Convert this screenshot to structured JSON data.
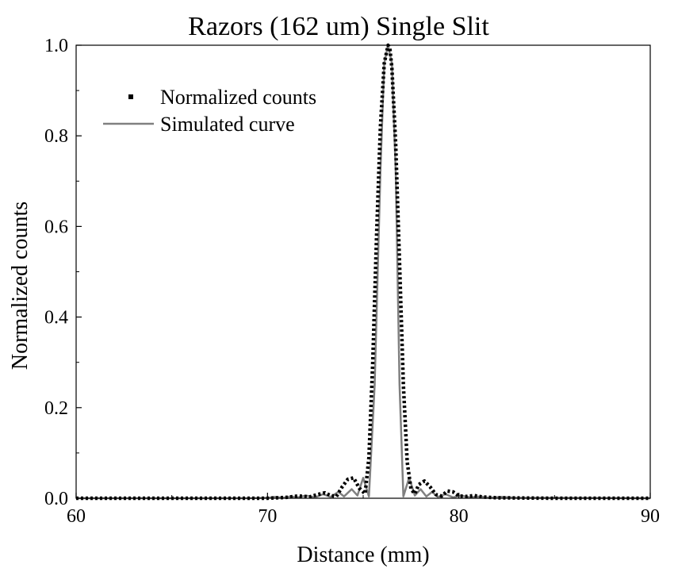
{
  "chart_data": {
    "type": "line",
    "title": "Razors (162 um) Single Slit",
    "xlabel": "Distance (mm)",
    "ylabel": "Normalized counts",
    "xlim": [
      60,
      90
    ],
    "ylim": [
      0,
      1
    ],
    "xticks": [
      "60",
      "70",
      "80",
      "90"
    ],
    "yticks": [
      "0.0",
      "0.2",
      "0.4",
      "0.6",
      "0.8",
      "1.0"
    ],
    "grid": false,
    "legend_position": "top-left",
    "series": [
      {
        "name": "Normalized counts",
        "style": "dotted",
        "color": "#000000",
        "x": [
          60,
          65,
          70,
          71.0,
          71.6,
          72.2,
          72.6,
          73.0,
          73.3,
          73.6,
          73.9,
          74.2,
          74.5,
          74.8,
          75.1,
          75.3,
          75.5,
          75.7,
          75.9,
          76.1,
          76.3,
          76.4,
          76.5,
          76.7,
          76.9,
          77.1,
          77.3,
          77.5,
          77.7,
          77.9,
          78.2,
          78.5,
          78.8,
          79.1,
          79.4,
          79.7,
          80.0,
          80.4,
          80.8,
          81.2,
          81.6,
          82.0,
          85,
          90
        ],
        "y": [
          0,
          0,
          0,
          0.002,
          0.005,
          0.003,
          0.008,
          0.012,
          0.006,
          0.004,
          0.025,
          0.042,
          0.045,
          0.022,
          0.01,
          0.09,
          0.3,
          0.58,
          0.82,
          0.96,
          1.0,
          0.99,
          0.95,
          0.78,
          0.52,
          0.25,
          0.08,
          0.02,
          0.01,
          0.03,
          0.038,
          0.025,
          0.008,
          0.005,
          0.016,
          0.014,
          0.005,
          0.004,
          0.006,
          0.003,
          0.002,
          0.001,
          0,
          0
        ]
      },
      {
        "name": "Simulated curve",
        "style": "solid",
        "color": "#808080",
        "x": [
          60,
          65,
          69.0,
          70.0,
          70.4,
          70.8,
          71.2,
          71.6,
          72.0,
          72.5,
          72.9,
          73.3,
          73.7,
          74.0,
          74.4,
          74.7,
          75.0,
          75.3,
          75.6,
          75.9,
          76.1,
          76.3,
          76.5,
          76.7,
          76.9,
          77.1,
          77.4,
          77.7,
          78.0,
          78.3,
          78.6,
          78.9,
          79.3,
          79.7,
          80.1,
          80.6,
          81.1,
          81.6,
          82.2,
          83,
          90
        ],
        "y": [
          0,
          0,
          0,
          0.001,
          0.003,
          0.001,
          0.004,
          0.002,
          0.006,
          0.002,
          0.009,
          0.003,
          0.014,
          0.004,
          0.02,
          0.006,
          0.045,
          0.004,
          0.25,
          0.72,
          0.96,
          1.0,
          0.96,
          0.72,
          0.25,
          0.004,
          0.045,
          0.006,
          0.02,
          0.004,
          0.014,
          0.003,
          0.009,
          0.002,
          0.006,
          0.002,
          0.004,
          0.001,
          0.003,
          0.001,
          0
        ]
      }
    ]
  }
}
